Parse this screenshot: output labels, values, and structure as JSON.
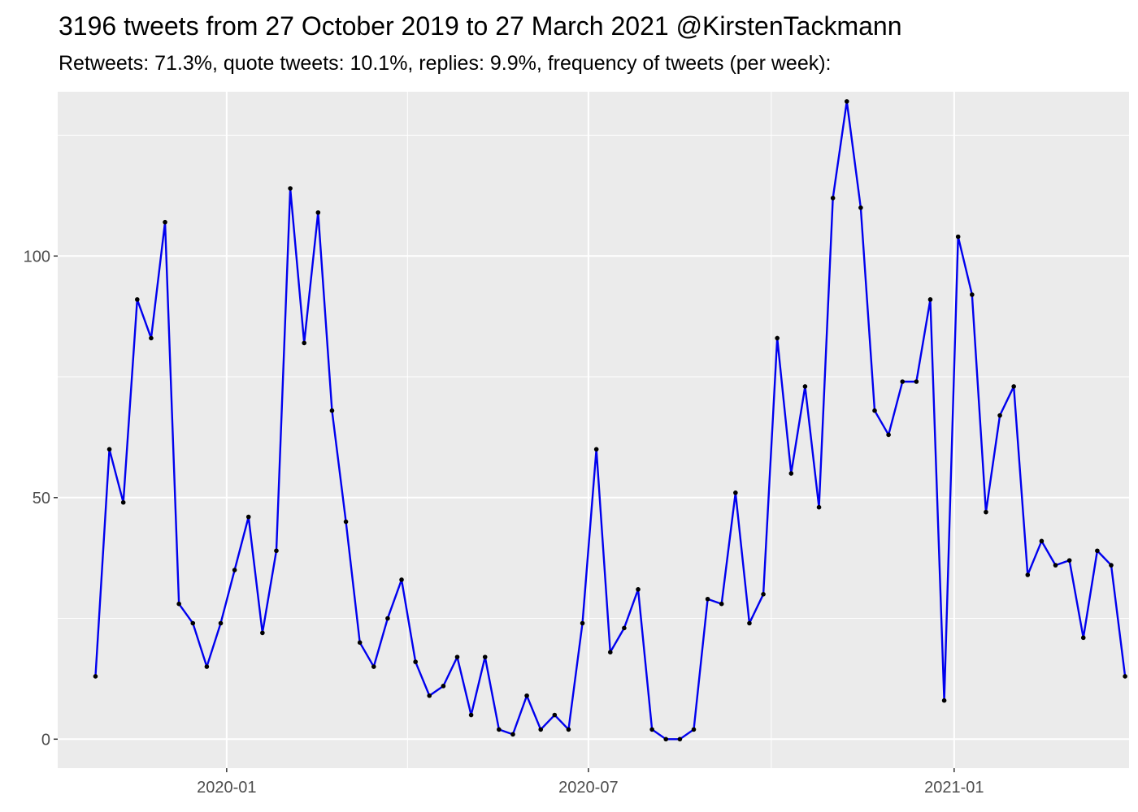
{
  "chart_data": {
    "type": "line",
    "title": "3196 tweets from 27 October 2019 to 27 March 2021 @KirstenTackmann",
    "subtitle": "Retweets: 71.3%, quote tweets: 10.1%, replies: 9.9%, frequency of tweets (per week):",
    "xlabel": "",
    "ylabel": "",
    "xlim": [
      "2019-10-08",
      "2021-03-30"
    ],
    "ylim": [
      -6,
      134
    ],
    "grid": true,
    "x_ticks": [
      {
        "date": "2020-01-01",
        "label": "2020-01"
      },
      {
        "date": "2020-07-01",
        "label": "2020-07"
      },
      {
        "date": "2021-01-01",
        "label": "2021-01"
      }
    ],
    "x_minor_ticks": [
      "2019-10-01",
      "2020-04-01",
      "2020-10-01",
      "2021-04-01"
    ],
    "y_ticks": [
      0,
      50,
      100
    ],
    "y_minor_ticks": [
      25,
      75,
      125
    ],
    "line_color": "#0000ee",
    "point_color": "#000000",
    "panel_color": "#ebebeb",
    "series": [
      {
        "x": [
          "2019-10-27",
          "2019-11-03",
          "2019-11-10",
          "2019-11-17",
          "2019-11-24",
          "2019-12-01",
          "2019-12-08",
          "2019-12-15",
          "2019-12-22",
          "2019-12-29",
          "2020-01-05",
          "2020-01-12",
          "2020-01-19",
          "2020-01-26",
          "2020-02-02",
          "2020-02-09",
          "2020-02-16",
          "2020-02-23",
          "2020-03-01",
          "2020-03-08",
          "2020-03-15",
          "2020-03-22",
          "2020-03-29",
          "2020-04-05",
          "2020-04-12",
          "2020-04-19",
          "2020-04-26",
          "2020-05-03",
          "2020-05-10",
          "2020-05-17",
          "2020-05-24",
          "2020-05-31",
          "2020-06-07",
          "2020-06-14",
          "2020-06-21",
          "2020-06-28",
          "2020-07-05",
          "2020-07-12",
          "2020-07-19",
          "2020-07-26",
          "2020-08-02",
          "2020-08-09",
          "2020-08-16",
          "2020-08-23",
          "2020-08-30",
          "2020-09-06",
          "2020-09-13",
          "2020-09-20",
          "2020-09-27",
          "2020-10-04",
          "2020-10-11",
          "2020-10-18",
          "2020-10-25",
          "2020-11-01",
          "2020-11-08",
          "2020-11-15",
          "2020-11-22",
          "2020-11-29",
          "2020-12-06",
          "2020-12-13",
          "2020-12-20",
          "2020-12-27",
          "2021-01-03",
          "2021-01-10",
          "2021-01-17",
          "2021-01-24",
          "2021-01-31",
          "2021-02-07",
          "2021-02-14",
          "2021-02-21",
          "2021-02-28",
          "2021-03-07",
          "2021-03-14",
          "2021-03-21",
          "2021-03-28"
        ],
        "values": [
          13,
          60,
          49,
          91,
          83,
          107,
          28,
          24,
          15,
          24,
          35,
          46,
          22,
          39,
          114,
          82,
          109,
          68,
          45,
          20,
          15,
          25,
          33,
          16,
          9,
          11,
          17,
          5,
          17,
          2,
          1,
          9,
          2,
          5,
          2,
          24,
          60,
          18,
          23,
          31,
          2,
          0,
          0,
          2,
          29,
          28,
          51,
          24,
          30,
          83,
          55,
          73,
          48,
          112,
          132,
          110,
          68,
          63,
          74,
          74,
          91,
          8,
          104,
          92,
          47,
          67,
          73,
          34,
          41,
          36,
          37,
          21,
          39,
          36,
          13
        ]
      }
    ]
  }
}
